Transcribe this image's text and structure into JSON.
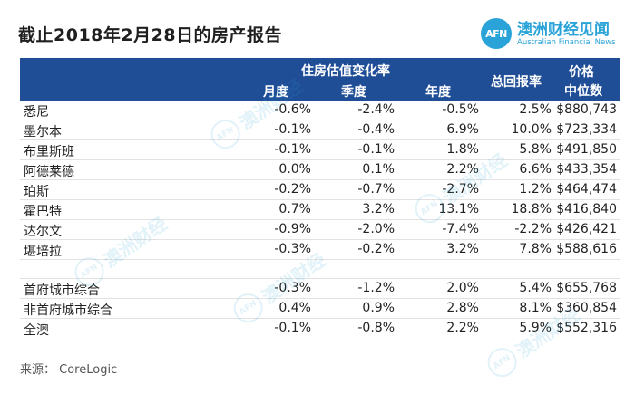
{
  "title": "截止2018年2月28日的房产报告",
  "logo": {
    "mark": "AFN",
    "name_cn": "澳洲财经见闻",
    "name_en": "Australian Financial News",
    "color": "#2aa3d8"
  },
  "header": {
    "group_label": "住房估值变化率",
    "col_month": "月度",
    "col_quarter": "季度",
    "col_year": "年度",
    "col_return": "总回报率",
    "col_price_l1": "价格",
    "col_price_l2": "中位数",
    "bg_color": "#1f4e97"
  },
  "rows": [
    {
      "city": "悉尼",
      "month": "-0.6%",
      "quarter": "-2.4%",
      "year": "-0.5%",
      "total_return": "2.5%",
      "median_price": "$880,743"
    },
    {
      "city": "墨尔本",
      "month": "-0.1%",
      "quarter": "-0.4%",
      "year": "6.9%",
      "total_return": "10.0%",
      "median_price": "$723,334"
    },
    {
      "city": "布里斯班",
      "month": "-0.1%",
      "quarter": "-0.1%",
      "year": "1.8%",
      "total_return": "5.8%",
      "median_price": "$491,850"
    },
    {
      "city": "阿德莱德",
      "month": "0.0%",
      "quarter": "0.1%",
      "year": "2.2%",
      "total_return": "6.6%",
      "median_price": "$433,354"
    },
    {
      "city": "珀斯",
      "month": "-0.2%",
      "quarter": "-0.7%",
      "year": "-2.7%",
      "total_return": "1.2%",
      "median_price": "$464,474"
    },
    {
      "city": "霍巴特",
      "month": "0.7%",
      "quarter": "3.2%",
      "year": "13.1%",
      "total_return": "18.8%",
      "median_price": "$416,840"
    },
    {
      "city": "达尔文",
      "month": "-0.9%",
      "quarter": "-2.0%",
      "year": "-7.4%",
      "total_return": "-2.2%",
      "median_price": "$426,421"
    },
    {
      "city": "堪培拉",
      "month": "-0.3%",
      "quarter": "-0.2%",
      "year": "3.2%",
      "total_return": "7.8%",
      "median_price": "$588,616"
    }
  ],
  "summary_rows": [
    {
      "city": "首府城市综合",
      "month": "-0.3%",
      "quarter": "-1.2%",
      "year": "2.0%",
      "total_return": "5.4%",
      "median_price": "$655,768"
    },
    {
      "city": "非首府城市综合",
      "month": "0.4%",
      "quarter": "0.9%",
      "year": "2.8%",
      "total_return": "8.1%",
      "median_price": "$360,854"
    },
    {
      "city": "全澳",
      "month": "-0.1%",
      "quarter": "-0.8%",
      "year": "2.2%",
      "total_return": "5.9%",
      "median_price": "$552,316"
    }
  ],
  "source": "来源： CoreLogic"
}
